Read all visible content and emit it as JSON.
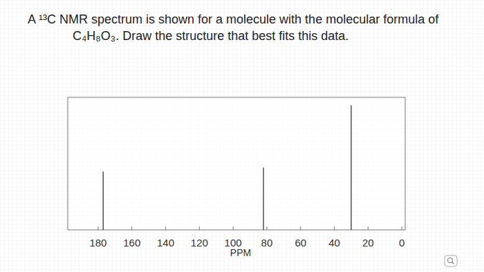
{
  "chart_data": {
    "type": "spectrum",
    "title": [
      "A ¹³C NMR spectrum is shown for a molecule with the molecular formula of",
      "C₄H₈O₃. Draw the structure that best fits this data."
    ],
    "x_label": "PPM",
    "x": [
      177,
      82,
      30
    ],
    "values": [
      44,
      47,
      94
    ],
    "xlim": [
      198,
      -2
    ],
    "xticks": [
      180,
      160,
      140,
      120,
      100,
      80,
      60,
      40,
      20,
      0
    ],
    "ylim": [
      0,
      100
    ],
    "tick_labels": "x",
    "color": "#444444"
  }
}
